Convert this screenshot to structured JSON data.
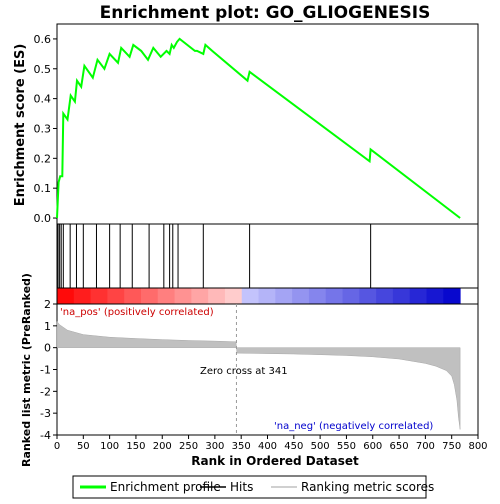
{
  "chart_data": {
    "type": "line",
    "title": "Enrichment plot: GO_GLIOGENESIS",
    "xlabel": "Rank in Ordered Dataset",
    "top_panel": {
      "ylabel": "Enrichment score (ES)",
      "ylim": [
        -0.02,
        0.65
      ],
      "yticks": [
        0.0,
        0.1,
        0.2,
        0.3,
        0.4,
        0.5,
        0.6
      ],
      "ytick_labels": [
        "0.0",
        "0.1",
        "0.2",
        "0.3",
        "0.4",
        "0.5",
        "0.6"
      ],
      "series": [
        {
          "name": "Enrichment profile",
          "color": "#00ff00",
          "x": [
            0,
            3,
            6,
            10,
            12,
            20,
            26,
            34,
            38,
            46,
            52,
            68,
            77,
            90,
            100,
            116,
            122,
            138,
            145,
            160,
            173,
            183,
            197,
            208,
            214,
            218,
            222,
            228,
            233,
            262,
            266,
            278,
            282,
            295,
            362,
            366,
            594,
            596,
            766
          ],
          "y": [
            0.0,
            0.12,
            0.14,
            0.14,
            0.35,
            0.33,
            0.41,
            0.39,
            0.46,
            0.44,
            0.51,
            0.47,
            0.53,
            0.5,
            0.55,
            0.52,
            0.57,
            0.54,
            0.58,
            0.56,
            0.53,
            0.57,
            0.54,
            0.56,
            0.55,
            0.58,
            0.57,
            0.59,
            0.6,
            0.56,
            0.56,
            0.55,
            0.58,
            0.56,
            0.46,
            0.49,
            0.19,
            0.23,
            0.0
          ]
        }
      ]
    },
    "hits_panel": {
      "series_name": "Hits",
      "hit_positions": [
        2,
        5,
        8,
        12,
        25,
        37,
        50,
        75,
        100,
        120,
        143,
        175,
        203,
        214,
        220,
        230,
        278,
        366,
        596
      ]
    },
    "ranked_panel": {
      "ylabel": "Ranked list metric (PreRanked)",
      "ylim": [
        -4,
        2
      ],
      "yticks": [
        2,
        1,
        0,
        -1,
        -2,
        -3,
        -4
      ],
      "ytick_labels": [
        "2",
        "1",
        "0",
        "-1",
        "-2",
        "-3",
        "-4"
      ],
      "series_name": "Ranking metric scores",
      "n": 766,
      "zero_cross": 341,
      "annotations": {
        "zero_cross": "Zero cross at 341",
        "pos_label": "'na_pos' (positively correlated)",
        "neg_label": "'na_neg' (negatively correlated)"
      },
      "curve_x": [
        0,
        5,
        20,
        50,
        100,
        150,
        200,
        250,
        300,
        340,
        342,
        400,
        450,
        500,
        550,
        600,
        650,
        700,
        720,
        740,
        750,
        755,
        760,
        763,
        766
      ],
      "curve_y": [
        1.2,
        1.05,
        0.8,
        0.6,
        0.48,
        0.42,
        0.37,
        0.33,
        0.3,
        0.27,
        -0.25,
        -0.27,
        -0.29,
        -0.32,
        -0.36,
        -0.42,
        -0.52,
        -0.72,
        -0.85,
        -1.05,
        -1.3,
        -1.7,
        -2.4,
        -3.2,
        -3.75
      ]
    },
    "xlim": [
      0,
      800
    ],
    "xticks": [
      0,
      50,
      100,
      150,
      200,
      250,
      300,
      350,
      400,
      450,
      500,
      550,
      600,
      650,
      700,
      750,
      800
    ],
    "xtick_labels": [
      "0",
      "50",
      "100",
      "150",
      "200",
      "250",
      "300",
      "350",
      "400",
      "450",
      "500",
      "550",
      "600",
      "650",
      "700",
      "750",
      "800"
    ],
    "heatmap_colors": {
      "positive_strong": "#ff0000",
      "positive_weak": "#ffd0d0",
      "negative_weak": "#d0d0ff",
      "negative_strong": "#0000cc"
    },
    "legend": {
      "placement": "bottom",
      "items": [
        {
          "label": "Enrichment profile",
          "color": "#00ff00",
          "style": "line"
        },
        {
          "label": "Hits",
          "color": "#000000",
          "style": "line"
        },
        {
          "label": "Ranking metric scores",
          "color": "#c0c0c0",
          "style": "line"
        }
      ]
    }
  }
}
